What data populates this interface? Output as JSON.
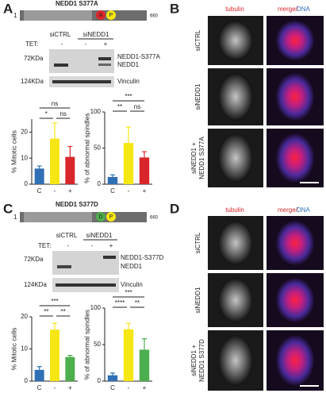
{
  "panels": {
    "A": {
      "label": "A",
      "construct": {
        "name": "NEDD1 S377A",
        "start": "1",
        "end": "660",
        "site": "A",
        "phospho": "P"
      },
      "blot": {
        "lanes": [
          "siCTRL",
          "siNEDD1"
        ],
        "tet_label": "TET:",
        "tet": [
          "-",
          "-",
          "+"
        ],
        "markers": [
          "72KDa",
          "124KDa"
        ],
        "bands": [
          "NEDD1-S377A",
          "NEDD1",
          "Vinculin"
        ]
      }
    },
    "B": {
      "label": "B",
      "columns": [
        "tubulin",
        "merge/",
        "DNA"
      ],
      "rows": [
        [
          "siCTRL"
        ],
        [
          "siNEDD1"
        ],
        [
          "siNEDD1 +",
          "NEDD1 S377A"
        ]
      ]
    },
    "C": {
      "label": "C",
      "construct": {
        "name": "NEDD1 S377D",
        "start": "1",
        "end": "660",
        "site": "D",
        "phospho": "P"
      },
      "blot": {
        "lanes": [
          "siCTRL",
          "siNEDD1"
        ],
        "tet_label": "TET:",
        "tet": [
          "-",
          "-",
          "+"
        ],
        "markers": [
          "72KDa",
          "124KDa"
        ],
        "bands": [
          "NEDD1-S377D",
          "NEDD1",
          "Vinculin"
        ]
      }
    },
    "D": {
      "label": "D",
      "columns": [
        "tubulin",
        "merge/",
        "DNA"
      ],
      "rows": [
        [
          "siCTRL"
        ],
        [
          "siNEDD1"
        ],
        [
          "siNEDD1 +",
          "NEDD1 S377D"
        ]
      ]
    }
  },
  "chart_data": [
    {
      "type": "bar",
      "ylabel": "% Mitotic cells",
      "categories": [
        "C",
        "-",
        "+"
      ],
      "values": [
        6,
        17.5,
        10.5
      ],
      "errors": [
        1,
        6,
        4
      ],
      "colors": [
        "#2f6fb5",
        "#f5e614",
        "#d9262b"
      ],
      "ylim": [
        0,
        25
      ],
      "yticks": [
        0,
        10,
        20
      ],
      "significance": [
        "ns",
        "*",
        "ns"
      ]
    },
    {
      "type": "bar",
      "ylabel": "% of abnormal spindles",
      "categories": [
        "C",
        "-",
        "+"
      ],
      "values": [
        10,
        57,
        37
      ],
      "errors": [
        3,
        22,
        8
      ],
      "colors": [
        "#2f6fb5",
        "#f5e614",
        "#d9262b"
      ],
      "ylim": [
        0,
        100
      ],
      "yticks": [
        0,
        50,
        100
      ],
      "significance": [
        "***",
        "**",
        "ns"
      ]
    },
    {
      "type": "bar",
      "ylabel": "% Mitotic cells",
      "categories": [
        "C",
        "-",
        "+"
      ],
      "values": [
        3.5,
        16,
        7.5
      ],
      "errors": [
        1,
        2,
        0.5
      ],
      "colors": [
        "#2f6fb5",
        "#f5e614",
        "#4cae4c"
      ],
      "ylim": [
        0,
        20
      ],
      "yticks": [
        0,
        10,
        20
      ],
      "significance": [
        "***",
        "**",
        "**"
      ]
    },
    {
      "type": "bar",
      "ylabel": "% of abnormal spindles",
      "categories": [
        "C",
        "-",
        "+"
      ],
      "values": [
        8,
        71,
        43
      ],
      "errors": [
        3,
        8,
        15
      ],
      "colors": [
        "#2f6fb5",
        "#f5e614",
        "#4cae4c"
      ],
      "ylim": [
        0,
        100
      ],
      "yticks": [
        0,
        50,
        100
      ],
      "significance": [
        "***",
        "****",
        "**"
      ]
    }
  ]
}
